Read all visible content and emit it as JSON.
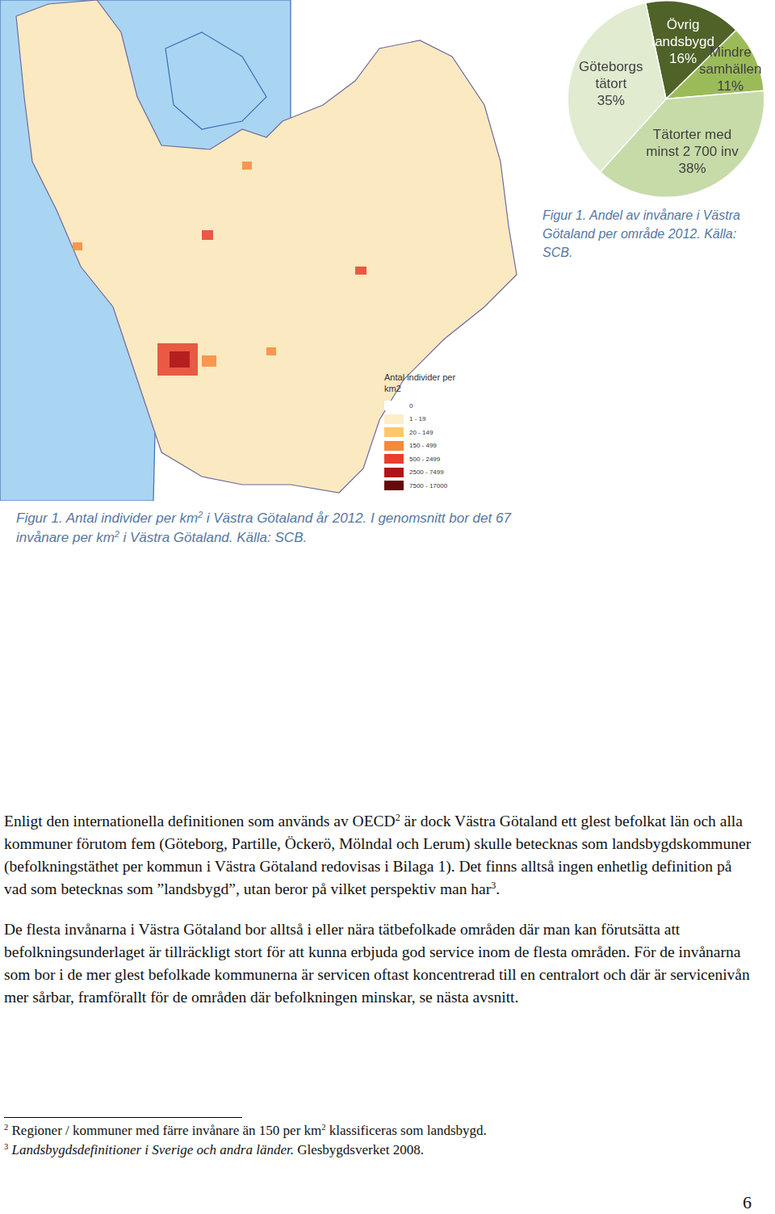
{
  "chart_data": {
    "type": "pie",
    "categories": [
      "Övrig landsbygd",
      "Mindre samhällen",
      "Tätorter med minst 2 700 inv",
      "Göteborgs tätort"
    ],
    "values": [
      16,
      11,
      38,
      35
    ],
    "value_labels": [
      "16%",
      "11%",
      "38%",
      "35%"
    ],
    "colors": [
      "#4f6228",
      "#9bbb59",
      "#c7dba9",
      "#e0ebd0"
    ],
    "data_labels": true,
    "legend": false
  },
  "pie_caption": [
    {
      "text": "Figur 1. Andel av invånare i Västra Götaland per område 2012. Källa: SCB."
    }
  ],
  "map": {
    "legend_title": "Antal individer per km2",
    "legend_items": [
      {
        "label": "0",
        "color": "#ffffff"
      },
      {
        "label": "1 - 19",
        "color": "#fdeec8"
      },
      {
        "label": "20 - 149",
        "color": "#fdc86c"
      },
      {
        "label": "150 - 499",
        "color": "#f48a3a"
      },
      {
        "label": "500 - 2499",
        "color": "#e6402e"
      },
      {
        "label": "2500 - 7499",
        "color": "#ad1519"
      },
      {
        "label": "7500 - 17000",
        "color": "#650909"
      }
    ],
    "caption": [
      {
        "text": "Figur 1. Antal individer per km"
      },
      {
        "text": "2",
        "style": "sup"
      },
      {
        "text": " i Västra Götaland år 2012. I genomsnitt bor det 67 invånare per km"
      },
      {
        "text": "2",
        "style": "sup"
      },
      {
        "text": " i Västra Götaland. Källa: SCB."
      }
    ]
  },
  "body": [
    [
      {
        "text": "Enligt den internationella definitionen som används av OECD"
      },
      {
        "text": "2",
        "style": "sup"
      },
      {
        "text": " är dock Västra Götaland ett glest befolkat län och alla kommuner förutom fem (Göteborg, Partille, Öckerö, Mölndal och Lerum) skulle betecknas som landsbygdskommuner (befolkningstäthet per kommun i Västra Götaland redovisas i Bilaga 1). Det finns alltså ingen enhetlig definition på vad som betecknas som ”landsbygd”, utan beror på vilket perspektiv man har"
      },
      {
        "text": "3",
        "style": "sup"
      },
      {
        "text": "."
      }
    ],
    [
      {
        "text": "De flesta invånarna i Västra Götaland bor alltså i eller nära tätbefolkade områden där man kan förutsätta att befolkningsunderlaget är tillräckligt stort för att kunna erbjuda god service inom de flesta områden. För de invånarna som bor i de mer glest befolkade kommunerna är servicen oftast koncentrerad till en centralort och där är servicenivån mer sårbar, framförallt för de områden där befolkningen minskar, se nästa avsnitt."
      }
    ]
  ],
  "footnotes": [
    [
      {
        "text": "2",
        "style": "sup"
      },
      {
        "text": " Regioner / kommuner med färre invånare än 150 per km"
      },
      {
        "text": "2",
        "style": "sup"
      },
      {
        "text": " klassificeras som landsbygd."
      }
    ],
    [
      {
        "text": "3",
        "style": "sup"
      },
      {
        "text": " "
      },
      {
        "text": "Landsbygdsdefinitioner i Sverige och andra länder.",
        "style": "italic"
      },
      {
        "text": " Glesbygdsverket 2008."
      }
    ]
  ],
  "page_number": "6"
}
